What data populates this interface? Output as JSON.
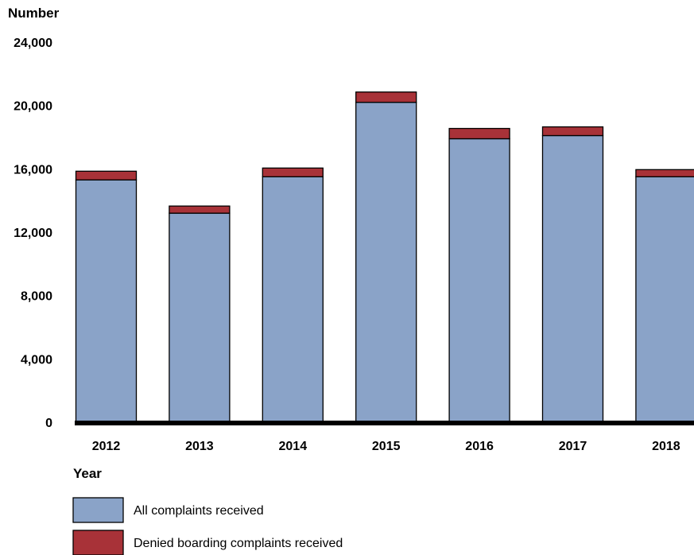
{
  "chart_data": {
    "type": "bar",
    "stacked": true,
    "ylabel": "Number",
    "xlabel": "Year",
    "categories": [
      "2012",
      "2013",
      "2014",
      "2015",
      "2016",
      "2017",
      "2018"
    ],
    "yticks": [
      "0",
      "4,000",
      "8,000",
      "12,000",
      "16,000",
      "20,000",
      "24,000"
    ],
    "ylim": [
      0,
      24000
    ],
    "grid": false,
    "legend_position": "bottom-left",
    "series": [
      {
        "name": "All complaints received",
        "color": "#8aa3c8",
        "values": [
          15300,
          13200,
          15500,
          20200,
          17900,
          18100,
          15500
        ]
      },
      {
        "name": "Denied boarding complaints received",
        "color": "#a83238",
        "values": [
          550,
          450,
          550,
          650,
          650,
          550,
          450
        ]
      }
    ]
  }
}
